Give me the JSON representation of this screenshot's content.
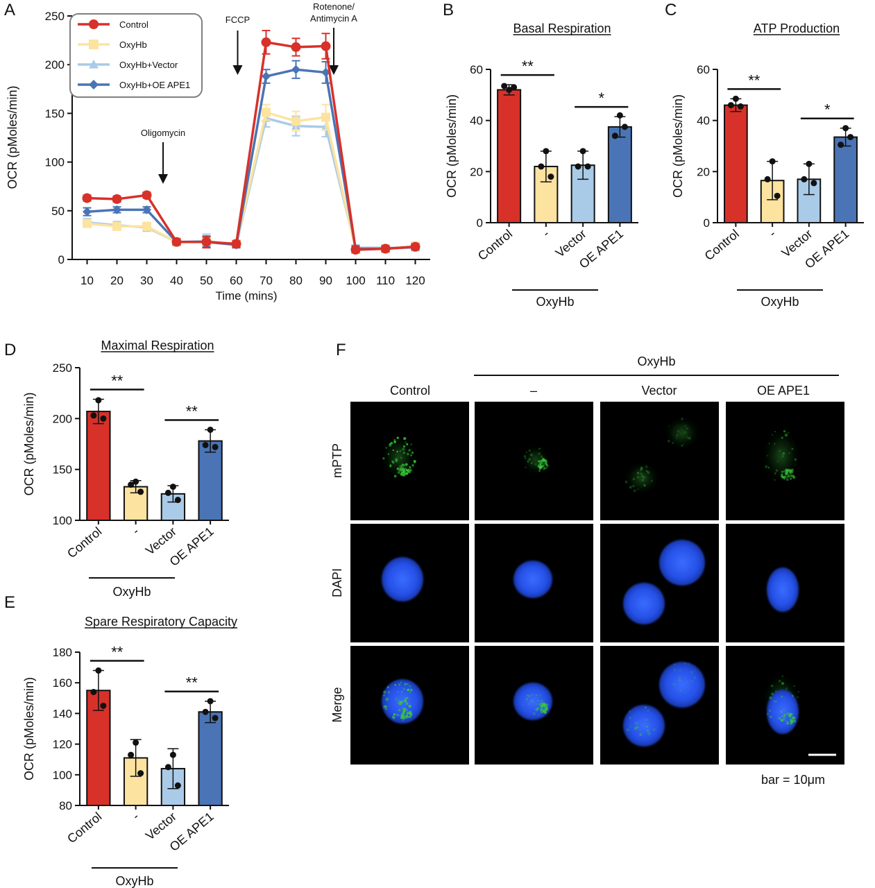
{
  "panel_letters": [
    "A",
    "B",
    "C",
    "D",
    "E",
    "F"
  ],
  "colors": {
    "control": "#d7312a",
    "oxyhb": "#fce3a0",
    "vector": "#a9cbe8",
    "oe_ape1": "#4a74b5",
    "green_signal": "#39c83a",
    "nucleus_blue": "#2b5bf0"
  },
  "chart_data": [
    {
      "panel": "A",
      "type": "line",
      "xlabel": "Time (mins)",
      "ylabel": "OCR (pMoles/min)",
      "ylim": [
        0,
        250
      ],
      "yticks": [
        0,
        50,
        100,
        150,
        200,
        250
      ],
      "xticks": [
        10,
        20,
        30,
        40,
        50,
        60,
        70,
        80,
        90,
        100,
        110,
        120
      ],
      "x": [
        10,
        20,
        30,
        40,
        50,
        60,
        70,
        80,
        90,
        100,
        110,
        120
      ],
      "legend_position": "top-left",
      "annotations": [
        {
          "text": "Oligomycin",
          "x": 35
        },
        {
          "text": "FCCP",
          "x": 60
        },
        {
          "text": "Rotenone/",
          "text2": "Antimycin A",
          "x": 95
        }
      ],
      "series": [
        {
          "name": "Control",
          "marker": "circle",
          "color": "#d7312a",
          "values": [
            63,
            62,
            66,
            18,
            18,
            16,
            223,
            218,
            219,
            10,
            11,
            13
          ],
          "errors": [
            3,
            3,
            3,
            3,
            6,
            3,
            12,
            9,
            13,
            3,
            3,
            3
          ]
        },
        {
          "name": "OxyHb",
          "marker": "square",
          "color": "#fce3a0",
          "values": [
            37,
            34,
            34,
            18,
            18,
            16,
            151,
            142,
            146,
            10,
            11,
            14
          ],
          "errors": [
            4,
            4,
            4,
            3,
            5,
            3,
            8,
            10,
            13,
            3,
            3,
            3
          ]
        },
        {
          "name": "OxyHb+Vector",
          "marker": "triangle",
          "color": "#a9cbe8",
          "values": [
            38,
            35,
            33,
            18,
            19,
            15,
            145,
            137,
            136,
            12,
            12,
            12
          ],
          "errors": [
            4,
            4,
            4,
            4,
            7,
            3,
            9,
            10,
            10,
            3,
            3,
            3
          ]
        },
        {
          "name": "OxyHb+OE APE1",
          "marker": "diamond",
          "color": "#4a74b5",
          "values": [
            49,
            51,
            51,
            18,
            18,
            15,
            188,
            195,
            192,
            11,
            11,
            13
          ],
          "errors": [
            4,
            3,
            3,
            3,
            5,
            3,
            7,
            9,
            11,
            3,
            3,
            3
          ]
        }
      ]
    },
    {
      "panel": "B",
      "type": "bar",
      "title": "Basal Respiration",
      "ylabel": "OCR (pMoles/min)",
      "ylim": [
        0,
        60
      ],
      "yticks": [
        0,
        20,
        40,
        60
      ],
      "categories": [
        "Control",
        "-",
        "Vector",
        "OE APE1"
      ],
      "group_label": "OxyHb",
      "values": [
        52,
        22,
        22.5,
        37.5
      ],
      "errors": [
        2,
        6,
        5.5,
        4
      ],
      "points": [
        [
          52,
          53.5,
          53
        ],
        [
          28,
          22,
          18
        ],
        [
          28,
          22,
          22
        ],
        [
          42,
          34,
          37.5
        ]
      ],
      "significance": [
        {
          "from": 0,
          "to": 1,
          "label": "**"
        },
        {
          "from": 2,
          "to": 3,
          "label": "*"
        }
      ]
    },
    {
      "panel": "C",
      "type": "bar",
      "title": "ATP Production",
      "ylabel": "OCR (pMoles/min)",
      "ylim": [
        0,
        60
      ],
      "yticks": [
        0,
        20,
        40,
        60
      ],
      "categories": [
        "Control",
        "-",
        "Vector",
        "OE APE1"
      ],
      "group_label": "OxyHb",
      "values": [
        46,
        16.5,
        17,
        33.5
      ],
      "errors": [
        2.5,
        7.5,
        6,
        3.5
      ],
      "points": [
        [
          48.5,
          46,
          45.5
        ],
        [
          24,
          17,
          10.5
        ],
        [
          23,
          17,
          15.5
        ],
        [
          37,
          30.5,
          33.5
        ]
      ],
      "significance": [
        {
          "from": 0,
          "to": 1,
          "label": "**"
        },
        {
          "from": 2,
          "to": 3,
          "label": "*"
        }
      ]
    },
    {
      "panel": "D",
      "type": "bar",
      "title": "Maximal Respiration",
      "ylabel": "OCR (pMoles/min)",
      "ylim": [
        100,
        250
      ],
      "yticks": [
        100,
        150,
        200,
        250
      ],
      "categories": [
        "Control",
        "-",
        "Vector",
        "OE APE1"
      ],
      "group_label": "OxyHb",
      "values": [
        207,
        133,
        126,
        178
      ],
      "errors": [
        12,
        6,
        8,
        11
      ],
      "points": [
        [
          218,
          203,
          200
        ],
        [
          138,
          135,
          128
        ],
        [
          133,
          127,
          120
        ],
        [
          189,
          174,
          172
        ]
      ],
      "significance": [
        {
          "from": 0,
          "to": 1,
          "label": "**"
        },
        {
          "from": 2,
          "to": 3,
          "label": "**"
        }
      ]
    },
    {
      "panel": "E",
      "type": "bar",
      "title": "Spare Respiratory Capacity",
      "ylabel": "OCR (pMoles/min)",
      "ylim": [
        80,
        180
      ],
      "yticks": [
        80,
        100,
        120,
        140,
        160,
        180
      ],
      "categories": [
        "Control",
        "-",
        "Vector",
        "OE APE1"
      ],
      "group_label": "OxyHb",
      "values": [
        155,
        111,
        104,
        141
      ],
      "errors": [
        13,
        12,
        13,
        7
      ],
      "points": [
        [
          168,
          154,
          145
        ],
        [
          121,
          113,
          101
        ],
        [
          113,
          105,
          93
        ],
        [
          148,
          141,
          137
        ]
      ],
      "significance": [
        {
          "from": 0,
          "to": 1,
          "label": "**"
        },
        {
          "from": 2,
          "to": 3,
          "label": "**"
        }
      ]
    }
  ],
  "microscopy": {
    "panel": "F",
    "group_label": "OxyHb",
    "columns": [
      "Control",
      "–",
      "Vector",
      "OE APE1"
    ],
    "rows": [
      "mPTP",
      "DAPI",
      "Merge"
    ],
    "scale_bar_label": "bar = 10μm"
  }
}
